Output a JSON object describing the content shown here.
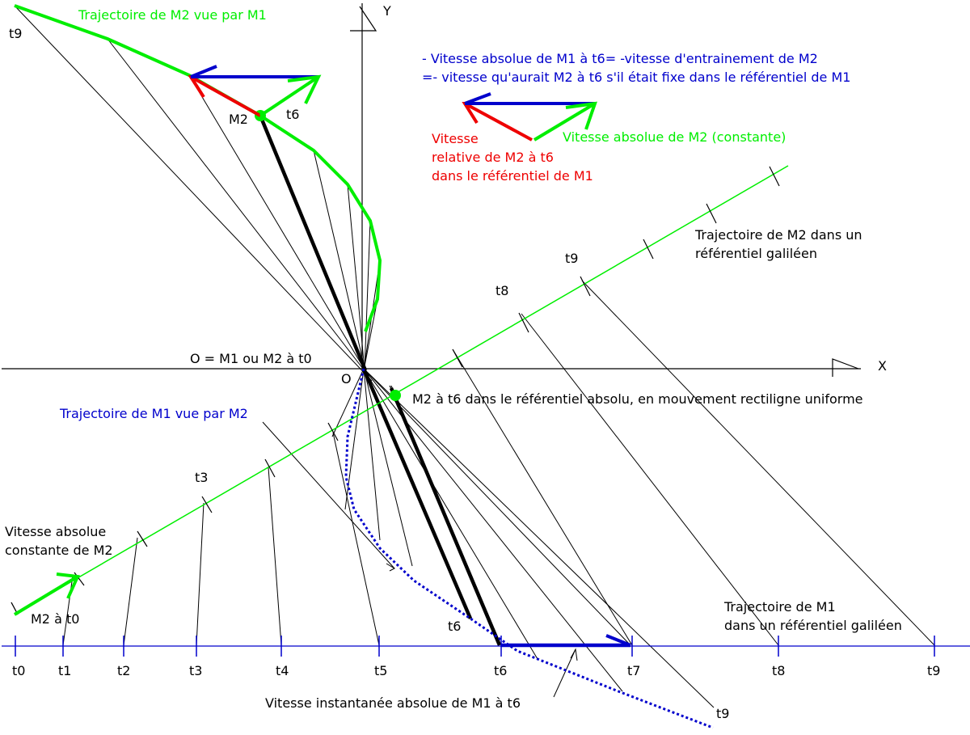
{
  "axes": {
    "x_label": "X",
    "y_label": "Y",
    "origin_label": "O",
    "origin_caption": "O = M1 ou M2 à t0"
  },
  "titles": {
    "traj_m2_vue_par_m1": "Trajectoire de M2 vue par M1",
    "traj_m1_vue_par_m2": "Trajectoire de M1 vue par M2",
    "traj_m2_galileen_line1": "Trajectoire de M2 dans un",
    "traj_m2_galileen_line2": "référentiel galiléen",
    "traj_m1_galileen_line1": "Trajectoire de M1",
    "traj_m1_galileen_line2": "dans un référentiel galiléen"
  },
  "notes": {
    "abs_m1_line1": "- Vitesse absolue de M1 à t6= -vitesse d'entrainement de M2",
    "abs_m1_line2": "=- vitesse qu'aurait M2 à t6 s'il était fixe dans le référentiel de M1",
    "rel_line1": "Vitesse",
    "rel_line2": "relative de M2 à t6",
    "rel_line3": "dans le référentiel de M1",
    "abs_m2": "Vitesse absolue de M2 (constante)",
    "m2_abs_point": "M2 à t6 dans le référentiel absolu, en mouvement rectiligne uniforme",
    "vit_m2_line1": "Vitesse absolue",
    "vit_m2_line2": "constante de M2",
    "m2_t0": "M2 à t0",
    "vit_inst_m1": "Vitesse instantanée absolue de M1 à t6"
  },
  "points": {
    "m2": "M2",
    "t6_top": "t6",
    "t9_top": "t9",
    "t6_lower": "t6",
    "t9_lower": "t9"
  },
  "m2_line_labels": {
    "t3": "t3",
    "t8": "t8",
    "t9": "t9"
  },
  "m1_ticks": [
    "t0",
    "t1",
    "t2",
    "t3",
    "t4",
    "t5",
    "t6",
    "t7",
    "t8",
    "t9"
  ],
  "colors": {
    "green": "#00ee00",
    "blue": "#0000cc",
    "red": "#ee0000",
    "black": "#000000"
  }
}
